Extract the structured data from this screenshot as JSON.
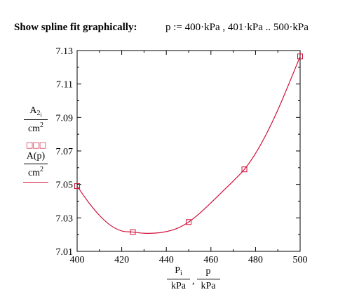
{
  "header": {
    "title": "Show spline fit graphically:",
    "definition": "p := 400·kPa , 401·kPa .. 500·kPa"
  },
  "chart_data": {
    "type": "line",
    "series": [
      {
        "name": "A2_i / cm^2",
        "style": "markers",
        "color": "#d0103a",
        "x": [
          400,
          425,
          450,
          475,
          500
        ],
        "y": [
          7.049,
          7.0215,
          7.0275,
          7.059,
          7.1265
        ]
      },
      {
        "name": "A(p) / cm^2",
        "style": "line",
        "color": "#d0103a",
        "x": [
          400,
          405,
          410,
          415,
          420,
          425,
          430,
          435,
          440,
          445,
          450,
          455,
          460,
          465,
          470,
          475,
          480,
          485,
          490,
          495,
          500
        ],
        "y": [
          7.049,
          7.0395,
          7.0315,
          7.0255,
          7.0222,
          7.0215,
          7.0208,
          7.0209,
          7.0218,
          7.0238,
          7.0275,
          7.0328,
          7.039,
          7.0455,
          7.052,
          7.059,
          7.0685,
          7.0805,
          7.0945,
          7.1102,
          7.1265
        ]
      }
    ],
    "xlim": [
      400,
      500
    ],
    "ylim": [
      7.01,
      7.13
    ],
    "x_ticks": [
      "400",
      "420",
      "440",
      "460",
      "480",
      "500"
    ],
    "y_ticks": [
      "7.01",
      "7.03",
      "7.05",
      "7.07",
      "7.09",
      "7.11",
      "7.13"
    ],
    "ylabel": {
      "top_num": "A",
      "top_sub": "2",
      "top_subsub": "i",
      "top_den": "cm",
      "top_den_sup": "2",
      "marker_symbol": "□□□",
      "bottom_num": "A(p)",
      "bottom_den": "cm",
      "bottom_den_sup": "2"
    },
    "xlabel": {
      "left_num": "P",
      "left_sub": "i",
      "left_den": "kPa",
      "sep": ",",
      "right_num": "p",
      "right_den": "kPa"
    }
  }
}
